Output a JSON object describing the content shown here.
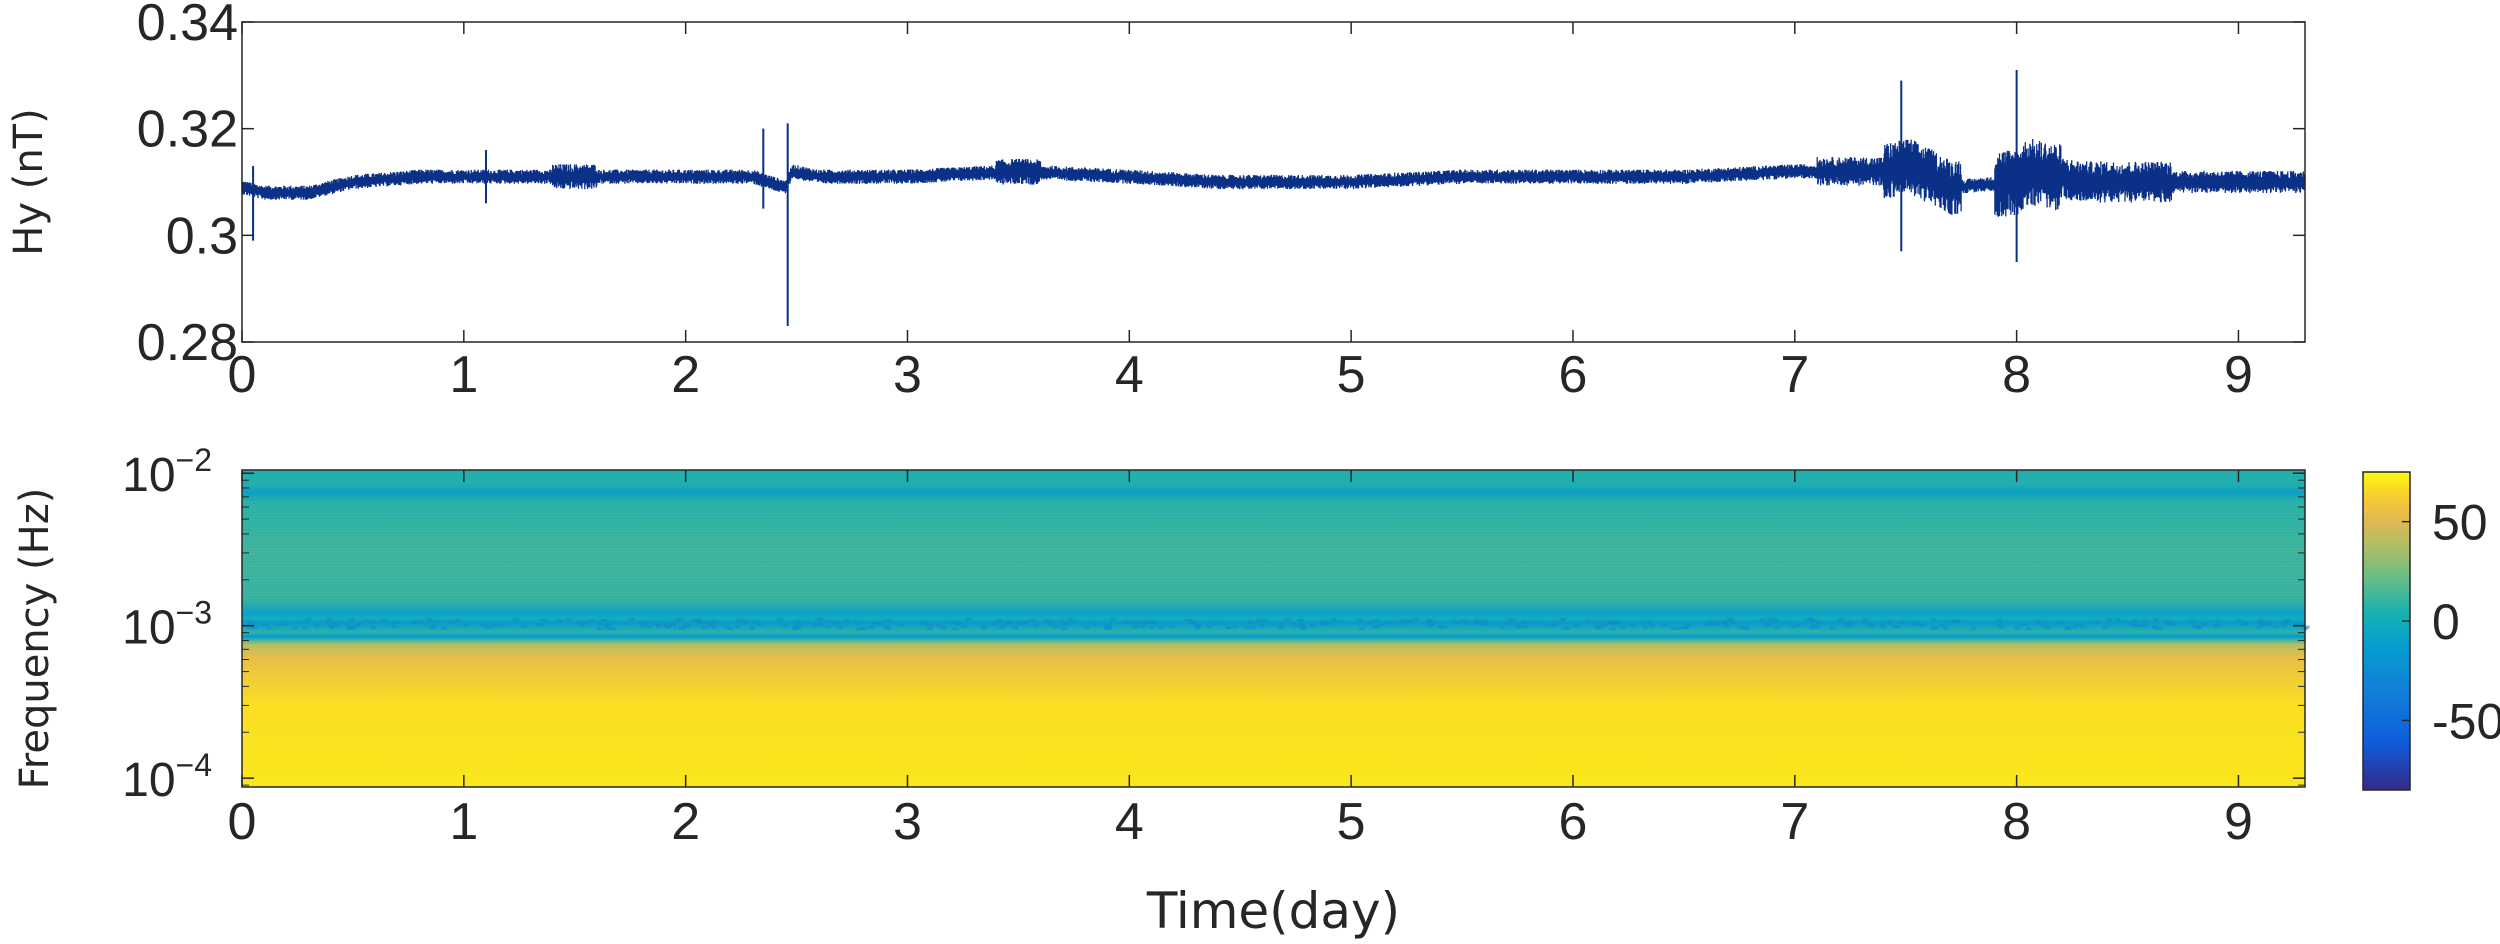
{
  "chart_data": [
    {
      "type": "line",
      "ylabel": "Hy (nT)",
      "xlabel": "",
      "xlim": [
        0,
        9.3
      ],
      "ylim": [
        0.28,
        0.34
      ],
      "x_ticks": [
        "0",
        "1",
        "2",
        "3",
        "4",
        "5",
        "6",
        "7",
        "8",
        "9"
      ],
      "y_ticks": [
        "0.28",
        "0.3",
        "0.32",
        "0.34"
      ],
      "line_color": "#0a3088",
      "grid": false,
      "series": [
        {
          "x": [
            0,
            0.1,
            0.3,
            0.5,
            0.8,
            1.0,
            1.5,
            2.0,
            2.3,
            2.45,
            2.48,
            2.6,
            3.0,
            3.5,
            4.0,
            4.4,
            5.0,
            5.5,
            6.0,
            6.5,
            7.0,
            7.4,
            7.52,
            7.7,
            8.0,
            8.05,
            8.3,
            8.6,
            9.0,
            9.3
          ],
          "y": [
            0.309,
            0.308,
            0.308,
            0.31,
            0.311,
            0.311,
            0.311,
            0.311,
            0.311,
            0.309,
            0.312,
            0.311,
            0.311,
            0.312,
            0.311,
            0.31,
            0.31,
            0.311,
            0.311,
            0.311,
            0.312,
            0.312,
            0.313,
            0.309,
            0.31,
            0.312,
            0.31,
            0.31,
            0.31,
            0.31
          ]
        }
      ],
      "events": [
        {
          "x": 2.46,
          "low": 0.283,
          "high": 0.321
        },
        {
          "x": 7.48,
          "low": 0.297,
          "high": 0.329
        },
        {
          "x": 8.0,
          "low": 0.295,
          "high": 0.331
        },
        {
          "x": 0.05,
          "low": 0.299,
          "high": 0.313
        },
        {
          "x": 1.1,
          "low": 0.306,
          "high": 0.316
        },
        {
          "x": 2.35,
          "low": 0.305,
          "high": 0.32
        }
      ]
    },
    {
      "type": "heatmap",
      "xlabel": "Time(day)",
      "ylabel": "Frequency (Hz)",
      "xlim": [
        0,
        9.3
      ],
      "ylim": [
        8.75e-05,
        0.0105
      ],
      "yscale": "log",
      "x_ticks": [
        "0",
        "1",
        "2",
        "3",
        "4",
        "5",
        "6",
        "7",
        "8",
        "9"
      ],
      "y_ticks": [
        {
          "base": "10",
          "exp": "−4",
          "value": 0.0001
        },
        {
          "base": "10",
          "exp": "−3",
          "value": 0.001
        },
        {
          "base": "10",
          "exp": "−2",
          "value": 0.01
        }
      ],
      "colormap": "parula",
      "clim": [
        -85,
        75
      ],
      "colorbar_ticks": [
        "50",
        "0",
        "-50"
      ],
      "colorbar_values": [
        50,
        0,
        -50
      ],
      "value_profile": [
        {
          "f": 8.75e-05,
          "v": 70
        },
        {
          "f": 0.0003,
          "v": 68
        },
        {
          "f": 0.0006,
          "v": 55
        },
        {
          "f": 0.00075,
          "v": 40
        },
        {
          "f": 0.00082,
          "v": 5
        },
        {
          "f": 0.00085,
          "v": -20
        },
        {
          "f": 0.0009,
          "v": 8
        },
        {
          "f": 0.00105,
          "v": -15
        },
        {
          "f": 0.00112,
          "v": 2
        },
        {
          "f": 0.0012,
          "v": -10
        },
        {
          "f": 0.0015,
          "v": 12
        },
        {
          "f": 0.003,
          "v": 14
        },
        {
          "f": 0.0065,
          "v": 8
        },
        {
          "f": 0.0075,
          "v": -10
        },
        {
          "f": 0.0085,
          "v": 6
        },
        {
          "f": 0.0105,
          "v": 6
        }
      ]
    }
  ]
}
